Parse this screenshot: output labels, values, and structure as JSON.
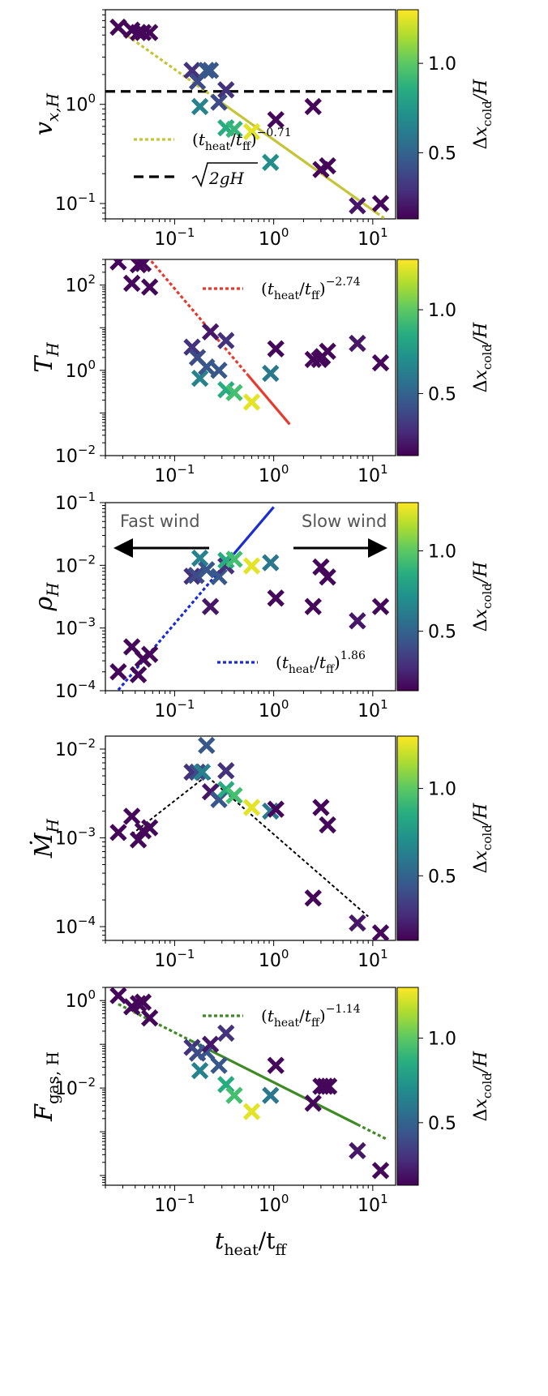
{
  "chart_data": [
    {
      "type": "scatter",
      "ylabel": "v_{x,H}",
      "ylabel_base": "v",
      "ylabel_sub": "x,H",
      "xscale": "log",
      "yscale": "log",
      "xlim": [
        0.02,
        17
      ],
      "ylim": [
        0.07,
        9
      ],
      "x_ticks": [
        0.1,
        1,
        10
      ],
      "x_tick_labels": [
        {
          "base": "10",
          "exp": "−1"
        },
        {
          "base": "10",
          "exp": "0"
        },
        {
          "base": "10",
          "exp": "1"
        }
      ],
      "y_ticks": [
        0.1,
        1
      ],
      "y_tick_labels": [
        {
          "base": "10",
          "exp": "−1"
        },
        {
          "base": "10",
          "exp": "0"
        }
      ],
      "colorbar_label": "Δx_cold/H",
      "points": [
        {
          "x": 0.027,
          "y": 6.0,
          "c": 0.15
        },
        {
          "x": 0.037,
          "y": 5.6,
          "c": 0.15
        },
        {
          "x": 0.043,
          "y": 5.3,
          "c": 0.15
        },
        {
          "x": 0.048,
          "y": 5.3,
          "c": 0.15
        },
        {
          "x": 0.056,
          "y": 5.3,
          "c": 0.15
        },
        {
          "x": 0.15,
          "y": 2.2,
          "c": 0.3
        },
        {
          "x": 0.17,
          "y": 1.7,
          "c": 0.4
        },
        {
          "x": 0.21,
          "y": 2.2,
          "c": 0.45
        },
        {
          "x": 0.23,
          "y": 2.2,
          "c": 0.45
        },
        {
          "x": 0.33,
          "y": 1.4,
          "c": 0.3
        },
        {
          "x": 0.18,
          "y": 0.95,
          "c": 0.65
        },
        {
          "x": 0.28,
          "y": 1.05,
          "c": 0.4
        },
        {
          "x": 0.33,
          "y": 0.58,
          "c": 0.85
        },
        {
          "x": 0.4,
          "y": 0.56,
          "c": 0.9
        },
        {
          "x": 0.6,
          "y": 0.53,
          "c": 1.25
        },
        {
          "x": 0.93,
          "y": 0.26,
          "c": 0.7
        },
        {
          "x": 1.05,
          "y": 0.7,
          "c": 0.15
        },
        {
          "x": 2.5,
          "y": 0.95,
          "c": 0.15
        },
        {
          "x": 3.0,
          "y": 0.22,
          "c": 0.15
        },
        {
          "x": 3.5,
          "y": 0.24,
          "c": 0.15
        },
        {
          "x": 7.0,
          "y": 0.095,
          "c": 0.2
        },
        {
          "x": 12.0,
          "y": 0.1,
          "c": 0.15
        }
      ],
      "fit_line": {
        "color": "#c6c437",
        "x_solid": [
          0.28,
          11.0
        ],
        "x_dotted": [
          0.027,
          0.28
        ],
        "amp": 0.44,
        "slope": -0.71,
        "dotted_tail": [
          11.0,
          13.0
        ]
      },
      "hline": {
        "y": 1.35,
        "color": "#000000"
      },
      "legend": [
        {
          "style": "dotted",
          "color": "#c6c437",
          "label_main": "(t",
          "sub1": "heat",
          "mid": "/t",
          "sub2": "ff",
          "close": ")",
          "exp": "−0.71"
        },
        {
          "style": "dashed",
          "color": "#000000",
          "label_main": "√2gH",
          "radicand": "2gH"
        }
      ]
    },
    {
      "type": "scatter",
      "ylabel_base": "T",
      "ylabel_sub": "H",
      "xscale": "log",
      "yscale": "log",
      "xlim": [
        0.02,
        17
      ],
      "ylim": [
        0.01,
        400
      ],
      "x_ticks": [
        0.1,
        1,
        10
      ],
      "x_tick_labels": [
        {
          "base": "10",
          "exp": "−1"
        },
        {
          "base": "10",
          "exp": "0"
        },
        {
          "base": "10",
          "exp": "1"
        }
      ],
      "y_ticks": [
        0.01,
        1,
        100
      ],
      "y_tick_labels": [
        {
          "base": "10",
          "exp": "−2"
        },
        {
          "base": "10",
          "exp": "0"
        },
        {
          "base": "10",
          "exp": "2"
        }
      ],
      "colorbar_label": "Δx_cold/H",
      "points": [
        {
          "x": 0.027,
          "y": 350,
          "c": 0.15
        },
        {
          "x": 0.037,
          "y": 110,
          "c": 0.15
        },
        {
          "x": 0.043,
          "y": 300,
          "c": 0.15
        },
        {
          "x": 0.048,
          "y": 320,
          "c": 0.15
        },
        {
          "x": 0.056,
          "y": 90,
          "c": 0.15
        },
        {
          "x": 0.15,
          "y": 3.5,
          "c": 0.3
        },
        {
          "x": 0.17,
          "y": 2.0,
          "c": 0.4
        },
        {
          "x": 0.18,
          "y": 0.65,
          "c": 0.65
        },
        {
          "x": 0.21,
          "y": 1.2,
          "c": 0.45
        },
        {
          "x": 0.23,
          "y": 8.0,
          "c": 0.2
        },
        {
          "x": 0.28,
          "y": 1.0,
          "c": 0.45
        },
        {
          "x": 0.33,
          "y": 0.35,
          "c": 0.85
        },
        {
          "x": 0.33,
          "y": 5.0,
          "c": 0.3
        },
        {
          "x": 0.4,
          "y": 0.3,
          "c": 0.95
        },
        {
          "x": 0.6,
          "y": 0.18,
          "c": 1.25
        },
        {
          "x": 0.93,
          "y": 0.85,
          "c": 0.6
        },
        {
          "x": 1.05,
          "y": 3.2,
          "c": 0.15
        },
        {
          "x": 2.5,
          "y": 1.8,
          "c": 0.15
        },
        {
          "x": 2.9,
          "y": 1.8,
          "c": 0.15
        },
        {
          "x": 3.1,
          "y": 2.1,
          "c": 0.15
        },
        {
          "x": 3.5,
          "y": 2.8,
          "c": 0.15
        },
        {
          "x": 7.0,
          "y": 4.3,
          "c": 0.2
        },
        {
          "x": 12.0,
          "y": 1.5,
          "c": 0.15
        }
      ],
      "fit_line": {
        "color": "#e8392d",
        "x_solid": [
          0.55,
          1.45
        ],
        "x_dotted": [
          0.027,
          0.55
        ],
        "amp": 0.15,
        "slope": -2.74
      },
      "legend": [
        {
          "style": "dotted",
          "color": "#e8392d",
          "label_main": "(t",
          "sub1": "heat",
          "mid": "/t",
          "sub2": "ff",
          "close": ")",
          "exp": "−2.74"
        }
      ]
    },
    {
      "type": "scatter",
      "ylabel_base": "ρ",
      "ylabel_sub": "H",
      "xscale": "log",
      "yscale": "log",
      "xlim": [
        0.02,
        17
      ],
      "ylim": [
        0.0001,
        0.1
      ],
      "x_ticks": [
        0.1,
        1,
        10
      ],
      "x_tick_labels": [
        {
          "base": "10",
          "exp": "−1"
        },
        {
          "base": "10",
          "exp": "0"
        },
        {
          "base": "10",
          "exp": "1"
        }
      ],
      "y_ticks": [
        0.0001,
        0.001,
        0.01,
        0.1
      ],
      "y_tick_labels": [
        {
          "base": "10",
          "exp": "−4"
        },
        {
          "base": "10",
          "exp": "−3"
        },
        {
          "base": "10",
          "exp": "−2"
        },
        {
          "base": "10",
          "exp": "−1"
        }
      ],
      "colorbar_label": "Δx_cold/H",
      "annotations": [
        {
          "text": "Fast wind",
          "direction": "left"
        },
        {
          "text": "Slow wind",
          "direction": "right"
        }
      ],
      "points": [
        {
          "x": 0.027,
          "y": 0.0002,
          "c": 0.15
        },
        {
          "x": 0.037,
          "y": 0.0005,
          "c": 0.15
        },
        {
          "x": 0.043,
          "y": 0.00018,
          "c": 0.15
        },
        {
          "x": 0.048,
          "y": 0.00032,
          "c": 0.15
        },
        {
          "x": 0.056,
          "y": 0.00038,
          "c": 0.15
        },
        {
          "x": 0.15,
          "y": 0.0067,
          "c": 0.3
        },
        {
          "x": 0.165,
          "y": 0.0069,
          "c": 0.4
        },
        {
          "x": 0.18,
          "y": 0.013,
          "c": 0.65
        },
        {
          "x": 0.21,
          "y": 0.0085,
          "c": 0.45
        },
        {
          "x": 0.23,
          "y": 0.0022,
          "c": 0.2
        },
        {
          "x": 0.28,
          "y": 0.0066,
          "c": 0.45
        },
        {
          "x": 0.33,
          "y": 0.0098,
          "c": 0.3
        },
        {
          "x": 0.33,
          "y": 0.012,
          "c": 0.85
        },
        {
          "x": 0.4,
          "y": 0.0125,
          "c": 0.95
        },
        {
          "x": 0.6,
          "y": 0.0098,
          "c": 1.25
        },
        {
          "x": 0.93,
          "y": 0.011,
          "c": 0.6
        },
        {
          "x": 1.05,
          "y": 0.003,
          "c": 0.15
        },
        {
          "x": 2.5,
          "y": 0.0022,
          "c": 0.15
        },
        {
          "x": 3.0,
          "y": 0.0094,
          "c": 0.15
        },
        {
          "x": 3.5,
          "y": 0.0065,
          "c": 0.15
        },
        {
          "x": 7.0,
          "y": 0.0013,
          "c": 0.2
        },
        {
          "x": 12.0,
          "y": 0.0022,
          "c": 0.15
        }
      ],
      "fit_line": {
        "color": "#1b2bd6",
        "x_solid": [
          0.3,
          1.0
        ],
        "x_dotted": [
          0.027,
          0.3
        ],
        "amp": 0.085,
        "slope": 1.86
      },
      "legend": [
        {
          "style": "dotted",
          "color": "#1b2bd6",
          "label_main": "(t",
          "sub1": "heat",
          "mid": "/t",
          "sub2": "ff",
          "close": ")",
          "exp": "1.86"
        }
      ]
    },
    {
      "type": "scatter",
      "ylabel_base": "Ṁ",
      "ylabel_sub": "H",
      "xscale": "log",
      "yscale": "log",
      "xlim": [
        0.02,
        17
      ],
      "ylim": [
        7e-05,
        0.014
      ],
      "x_ticks": [
        0.1,
        1,
        10
      ],
      "x_tick_labels": [
        {
          "base": "10",
          "exp": "−1"
        },
        {
          "base": "10",
          "exp": "0"
        },
        {
          "base": "10",
          "exp": "1"
        }
      ],
      "y_ticks": [
        0.0001,
        0.001,
        0.01
      ],
      "y_tick_labels": [
        {
          "base": "10",
          "exp": "−4"
        },
        {
          "base": "10",
          "exp": "−3"
        },
        {
          "base": "10",
          "exp": "−2"
        }
      ],
      "colorbar_label": "Δx_cold/H",
      "points": [
        {
          "x": 0.027,
          "y": 0.00115,
          "c": 0.15
        },
        {
          "x": 0.037,
          "y": 0.00175,
          "c": 0.15
        },
        {
          "x": 0.043,
          "y": 0.00095,
          "c": 0.15
        },
        {
          "x": 0.048,
          "y": 0.0012,
          "c": 0.15
        },
        {
          "x": 0.056,
          "y": 0.0013,
          "c": 0.15
        },
        {
          "x": 0.15,
          "y": 0.0055,
          "c": 0.3
        },
        {
          "x": 0.17,
          "y": 0.0055,
          "c": 0.4
        },
        {
          "x": 0.19,
          "y": 0.0055,
          "c": 0.65
        },
        {
          "x": 0.21,
          "y": 0.011,
          "c": 0.45
        },
        {
          "x": 0.23,
          "y": 0.0033,
          "c": 0.2
        },
        {
          "x": 0.28,
          "y": 0.0027,
          "c": 0.45
        },
        {
          "x": 0.33,
          "y": 0.0057,
          "c": 0.3
        },
        {
          "x": 0.33,
          "y": 0.0035,
          "c": 0.85
        },
        {
          "x": 0.4,
          "y": 0.003,
          "c": 0.95
        },
        {
          "x": 0.6,
          "y": 0.0022,
          "c": 1.25
        },
        {
          "x": 0.93,
          "y": 0.002,
          "c": 0.6
        },
        {
          "x": 1.05,
          "y": 0.0021,
          "c": 0.15
        },
        {
          "x": 2.5,
          "y": 0.00021,
          "c": 0.15
        },
        {
          "x": 3.0,
          "y": 0.0022,
          "c": 0.15
        },
        {
          "x": 3.5,
          "y": 0.0014,
          "c": 0.15
        },
        {
          "x": 7.0,
          "y": 0.00011,
          "c": 0.2
        },
        {
          "x": 12.0,
          "y": 8.5e-05,
          "c": 0.15
        }
      ],
      "guide_line": {
        "color": "#000000",
        "xy": [
          [
            0.037,
            0.0011
          ],
          [
            0.21,
            0.005
          ],
          [
            9.0,
            0.00013
          ]
        ]
      },
      "legend": []
    },
    {
      "type": "scatter",
      "ylabel_base": "F",
      "ylabel_sub": "gas, H",
      "xlabel_main": "t",
      "xlabel_sub1": "heat",
      "xlabel_mid": "/t",
      "xlabel_sub2": "ff",
      "xscale": "log",
      "yscale": "log",
      "xlim": [
        0.02,
        17
      ],
      "ylim": [
        6e-05,
        2.0
      ],
      "x_ticks": [
        0.1,
        1,
        10
      ],
      "x_tick_labels": [
        {
          "base": "10",
          "exp": "−1"
        },
        {
          "base": "10",
          "exp": "0"
        },
        {
          "base": "10",
          "exp": "1"
        }
      ],
      "y_ticks": [
        0.01,
        1
      ],
      "y_tick_labels": [
        {
          "base": "10",
          "exp": "−2"
        },
        {
          "base": "10",
          "exp": "0"
        }
      ],
      "colorbar_label": "Δx_cold/H",
      "points": [
        {
          "x": 0.027,
          "y": 1.3,
          "c": 0.15
        },
        {
          "x": 0.037,
          "y": 0.72,
          "c": 0.15
        },
        {
          "x": 0.043,
          "y": 0.85,
          "c": 0.15
        },
        {
          "x": 0.048,
          "y": 0.92,
          "c": 0.15
        },
        {
          "x": 0.056,
          "y": 0.4,
          "c": 0.15
        },
        {
          "x": 0.15,
          "y": 0.085,
          "c": 0.3
        },
        {
          "x": 0.17,
          "y": 0.063,
          "c": 0.4
        },
        {
          "x": 0.18,
          "y": 0.025,
          "c": 0.65
        },
        {
          "x": 0.21,
          "y": 0.067,
          "c": 0.45
        },
        {
          "x": 0.23,
          "y": 0.1,
          "c": 0.2
        },
        {
          "x": 0.28,
          "y": 0.033,
          "c": 0.45
        },
        {
          "x": 0.33,
          "y": 0.012,
          "c": 0.85
        },
        {
          "x": 0.33,
          "y": 0.18,
          "c": 0.3
        },
        {
          "x": 0.4,
          "y": 0.0068,
          "c": 0.95
        },
        {
          "x": 0.6,
          "y": 0.0029,
          "c": 1.25
        },
        {
          "x": 0.93,
          "y": 0.0068,
          "c": 0.6
        },
        {
          "x": 1.05,
          "y": 0.033,
          "c": 0.15
        },
        {
          "x": 2.5,
          "y": 0.0045,
          "c": 0.15
        },
        {
          "x": 3.0,
          "y": 0.011,
          "c": 0.15
        },
        {
          "x": 3.3,
          "y": 0.011,
          "c": 0.15
        },
        {
          "x": 3.6,
          "y": 0.011,
          "c": 0.15
        },
        {
          "x": 7.0,
          "y": 0.00037,
          "c": 0.2
        },
        {
          "x": 12.0,
          "y": 0.00013,
          "c": 0.15
        }
      ],
      "fit_line": {
        "color": "#3e8a25",
        "x_solid": [
          0.14,
          7.0
        ],
        "x_dotted": [
          0.027,
          0.14
        ],
        "amp": 0.0135,
        "slope": -1.14,
        "dotted_tail": [
          7.0,
          14.0
        ]
      },
      "legend": [
        {
          "style": "dotted",
          "color": "#3e8a25",
          "label_main": "(t",
          "sub1": "heat",
          "mid": "/t",
          "sub2": "ff",
          "close": ")",
          "exp": "−1.14"
        }
      ]
    }
  ],
  "colorbar": {
    "label": "Δx_cold/H",
    "label_delta": "Δ",
    "label_x": "x",
    "label_sub": "cold",
    "label_tail": "/H",
    "range": [
      0.13,
      1.3
    ],
    "ticks": [
      0.5,
      1.0
    ],
    "tick_labels": [
      "0.5",
      "1.0"
    ],
    "colormap": "viridis"
  }
}
